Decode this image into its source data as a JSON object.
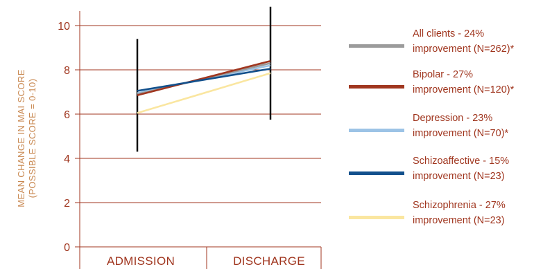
{
  "chart_data": {
    "type": "line",
    "categories": [
      "ADMISSION",
      "DISCHARGE"
    ],
    "ylabel_lines": [
      "MEAN CHANGE IN MAI SCORE",
      "(POSSIBLE SCORE = 0-10)"
    ],
    "ylim": [
      0,
      10
    ],
    "yticks": [
      "0",
      "2",
      "4",
      "6",
      "8",
      "10"
    ],
    "grid": true,
    "legend_position": "right",
    "series": [
      {
        "name": "All clients - 24% improvement (N=262)*",
        "legend_lines": [
          "All clients - 24%",
          "improvement (N=262)*"
        ],
        "values": [
          6.9,
          8.3
        ],
        "color": "#9b9b9b"
      },
      {
        "name": "Bipolar - 27% improvement (N=120)*",
        "legend_lines": [
          "Bipolar - 27%",
          "improvement (N=120)*"
        ],
        "values": [
          6.85,
          8.4
        ],
        "color": "#a0361f"
      },
      {
        "name": "Depression - 23% improvement (N=70)*",
        "legend_lines": [
          "Depression - 23%",
          "improvement (N=70)*"
        ],
        "values": [
          6.95,
          8.2
        ],
        "color": "#9cc3e6"
      },
      {
        "name": "Schizoaffective - 15% improvement (N=23)",
        "legend_lines": [
          "Schizoaffective - 15%",
          "improvement (N=23)"
        ],
        "values": [
          7.05,
          8.05
        ],
        "color": "#12508c"
      },
      {
        "name": "Schizophrenia - 27% improvement (N=23)",
        "legend_lines": [
          "Schizophrenia - 27%",
          "improvement (N=23)"
        ],
        "values": [
          6.05,
          7.85
        ],
        "color": "#fae6a0"
      }
    ],
    "error_bars": [
      {
        "category": "ADMISSION",
        "low": 4.3,
        "high": 9.4
      },
      {
        "category": "DISCHARGE",
        "low": 5.75,
        "high": 10.85
      }
    ]
  }
}
